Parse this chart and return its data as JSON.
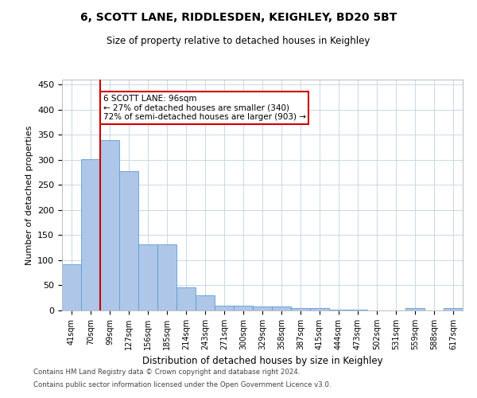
{
  "title1": "6, SCOTT LANE, RIDDLESDEN, KEIGHLEY, BD20 5BT",
  "title2": "Size of property relative to detached houses in Keighley",
  "xlabel": "Distribution of detached houses by size in Keighley",
  "ylabel": "Number of detached properties",
  "categories": [
    "41sqm",
    "70sqm",
    "99sqm",
    "127sqm",
    "156sqm",
    "185sqm",
    "214sqm",
    "243sqm",
    "271sqm",
    "300sqm",
    "329sqm",
    "358sqm",
    "387sqm",
    "415sqm",
    "444sqm",
    "473sqm",
    "502sqm",
    "531sqm",
    "559sqm",
    "588sqm",
    "617sqm"
  ],
  "values": [
    92,
    301,
    340,
    278,
    131,
    131,
    46,
    30,
    10,
    10,
    8,
    8,
    4,
    4,
    2,
    2,
    0,
    0,
    4,
    0,
    4
  ],
  "bar_color": "#aec6e8",
  "bar_edge_color": "#5a9fd4",
  "vline_x_index": 2,
  "vline_color": "#cc0000",
  "annotation_line1": "6 SCOTT LANE: 96sqm",
  "annotation_line2": "← 27% of detached houses are smaller (340)",
  "annotation_line3": "72% of semi-detached houses are larger (903) →",
  "annotation_box_color": "#ffffff",
  "annotation_box_edge": "#cc0000",
  "ylim": [
    0,
    460
  ],
  "yticks": [
    0,
    50,
    100,
    150,
    200,
    250,
    300,
    350,
    400,
    450
  ],
  "bg_color": "#ffffff",
  "grid_color": "#c8d8e8",
  "footer1": "Contains HM Land Registry data © Crown copyright and database right 2024.",
  "footer2": "Contains public sector information licensed under the Open Government Licence v3.0."
}
